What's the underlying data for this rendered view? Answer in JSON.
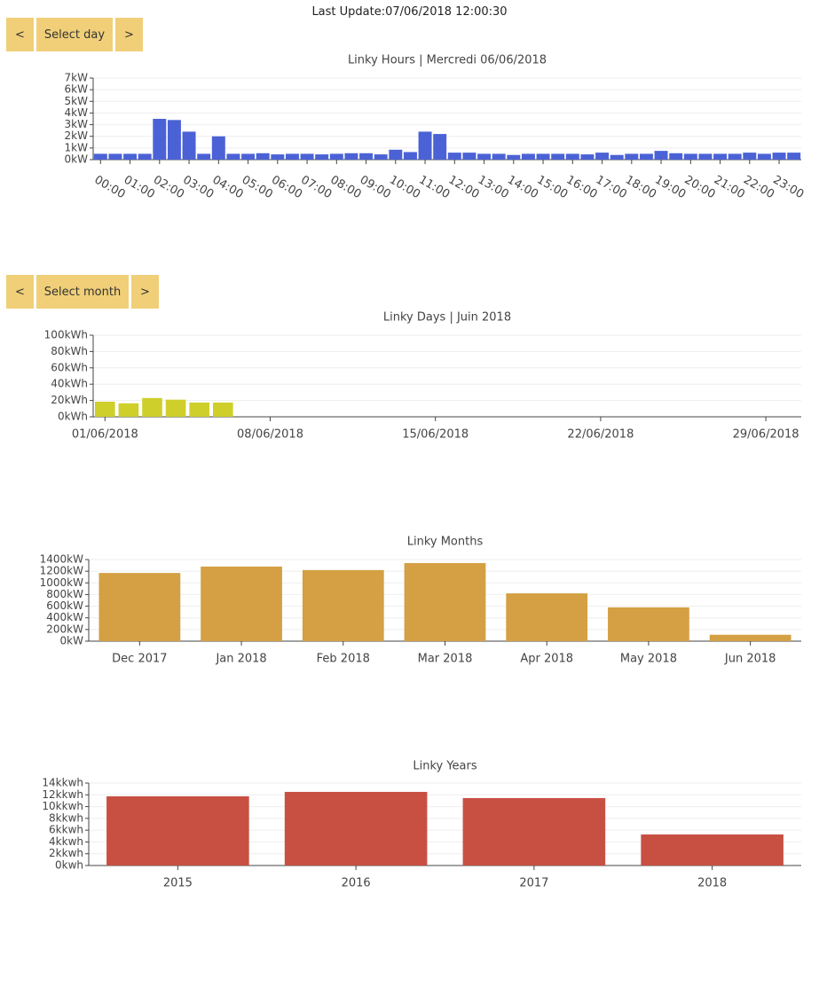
{
  "last_update": "Last Update:07/06/2018 12:00:30",
  "day_nav": {
    "prev": "<",
    "label": "Select day",
    "next": ">"
  },
  "month_nav": {
    "prev": "<",
    "label": "Select month",
    "next": ">"
  },
  "chart_data": [
    {
      "type": "bar",
      "title": "Linky Hours | Mercredi 06/06/2018",
      "color": "#4b62d6",
      "grid": true,
      "categories": [
        "00:00",
        null,
        "01:00",
        null,
        "02:00",
        null,
        "03:00",
        null,
        "04:00",
        null,
        "05:00",
        null,
        "06:00",
        null,
        "07:00",
        null,
        "08:00",
        null,
        "09:00",
        null,
        "10:00",
        null,
        "11:00",
        null,
        "12:00",
        null,
        "13:00",
        null,
        "14:00",
        null,
        "15:00",
        null,
        "16:00",
        null,
        "17:00",
        null,
        "18:00",
        null,
        "19:00",
        null,
        "20:00",
        null,
        "21:00",
        null,
        "22:00",
        null,
        "23:00",
        null
      ],
      "values": [
        0.5,
        0.5,
        0.5,
        0.5,
        3.5,
        3.4,
        2.4,
        0.5,
        2.0,
        0.5,
        0.5,
        0.55,
        0.45,
        0.5,
        0.5,
        0.45,
        0.5,
        0.55,
        0.55,
        0.45,
        0.85,
        0.65,
        2.4,
        2.2,
        0.6,
        0.6,
        0.5,
        0.5,
        0.4,
        0.5,
        0.5,
        0.5,
        0.5,
        0.45,
        0.6,
        0.4,
        0.5,
        0.5,
        0.75,
        0.55,
        0.5,
        0.5,
        0.5,
        0.5,
        0.6,
        0.5,
        0.6,
        0.6
      ],
      "ylim": [
        0,
        7
      ],
      "yticks": [
        {
          "value": 0,
          "label": "0kW"
        },
        {
          "value": 1,
          "label": "1kW"
        },
        {
          "value": 2,
          "label": "2kW"
        },
        {
          "value": 3,
          "label": "3kW"
        },
        {
          "value": 4,
          "label": "4kW"
        },
        {
          "value": 5,
          "label": "5kW"
        },
        {
          "value": 6,
          "label": "6kW"
        },
        {
          "value": 7,
          "label": "7kW"
        }
      ]
    },
    {
      "type": "bar",
      "title": "Linky Days | Juin 2018",
      "color": "#cfcf2c",
      "grid": true,
      "categories": [
        "01/06/2018",
        null,
        null,
        null,
        null,
        null,
        null,
        "08/06/2018",
        null,
        null,
        null,
        null,
        null,
        null,
        "15/06/2018",
        null,
        null,
        null,
        null,
        null,
        null,
        "22/06/2018",
        null,
        null,
        null,
        null,
        null,
        null,
        "29/06/2018",
        null
      ],
      "values": [
        18.5,
        16.5,
        23,
        21,
        17.5,
        17.5,
        null,
        null,
        null,
        null,
        null,
        null,
        null,
        null,
        null,
        null,
        null,
        null,
        null,
        null,
        null,
        null,
        null,
        null,
        null,
        null,
        null,
        null,
        null,
        null
      ],
      "ylim": [
        0,
        100
      ],
      "yticks": [
        {
          "value": 0,
          "label": "0kWh"
        },
        {
          "value": 20,
          "label": "20kWh"
        },
        {
          "value": 40,
          "label": "40kWh"
        },
        {
          "value": 60,
          "label": "60kWh"
        },
        {
          "value": 80,
          "label": "80kWh"
        },
        {
          "value": 100,
          "label": "100kWh"
        }
      ]
    },
    {
      "type": "bar",
      "title": "Linky Months",
      "color": "#d4a043",
      "grid": true,
      "categories": [
        "Dec 2017",
        "Jan 2018",
        "Feb 2018",
        "Mar 2018",
        "Apr 2018",
        "May 2018",
        "Jun 2018"
      ],
      "values": [
        1170,
        1280,
        1220,
        1340,
        820,
        580,
        110
      ],
      "ylim": [
        0,
        1400
      ],
      "yticks": [
        {
          "value": 0,
          "label": "0kW"
        },
        {
          "value": 200,
          "label": "200kW"
        },
        {
          "value": 400,
          "label": "400kW"
        },
        {
          "value": 600,
          "label": "600kW"
        },
        {
          "value": 800,
          "label": "800kW"
        },
        {
          "value": 1000,
          "label": "1000kW"
        },
        {
          "value": 1200,
          "label": "1200kW"
        },
        {
          "value": 1400,
          "label": "1400kW"
        }
      ]
    },
    {
      "type": "bar",
      "title": "Linky Years",
      "color": "#c85043",
      "grid": true,
      "categories": [
        "2015",
        "2016",
        "2017",
        "2018"
      ],
      "values": [
        11750,
        12500,
        11450,
        5270
      ],
      "ylim": [
        0,
        14000
      ],
      "yticks": [
        {
          "value": 0,
          "label": "0kwh"
        },
        {
          "value": 2000,
          "label": "2kkwh"
        },
        {
          "value": 4000,
          "label": "4kkwh"
        },
        {
          "value": 6000,
          "label": "6kkwh"
        },
        {
          "value": 8000,
          "label": "8kkwh"
        },
        {
          "value": 10000,
          "label": "10kkwh"
        },
        {
          "value": 12000,
          "label": "12kkwh"
        },
        {
          "value": 14000,
          "label": "14kkwh"
        }
      ]
    }
  ]
}
